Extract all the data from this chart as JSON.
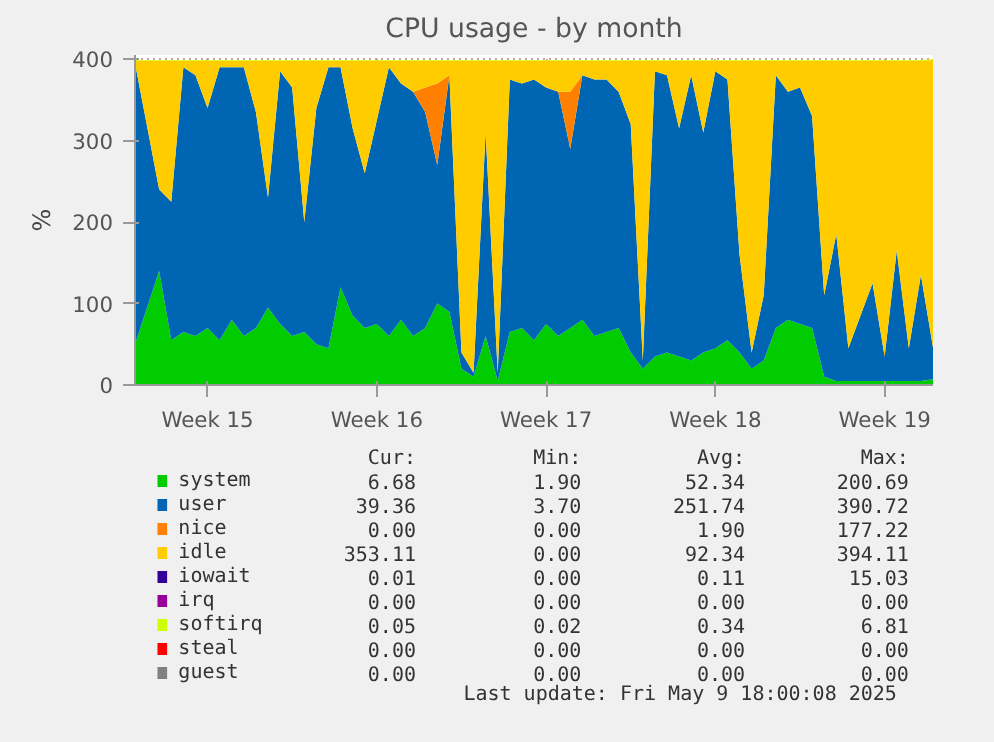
{
  "chart_data": {
    "type": "area",
    "stacked": true,
    "title": "CPU usage - by month",
    "ylabel": "%",
    "categories": [
      null,
      null,
      null,
      null,
      null,
      null,
      "Week 15",
      null,
      null,
      null,
      null,
      null,
      null,
      null,
      null,
      null,
      null,
      null,
      null,
      null,
      "Week 16",
      null,
      null,
      null,
      null,
      null,
      null,
      null,
      null,
      null,
      null,
      null,
      null,
      null,
      "Week 17",
      null,
      null,
      null,
      null,
      null,
      null,
      null,
      null,
      null,
      null,
      null,
      null,
      null,
      "Week 18",
      null,
      null,
      null,
      null,
      null,
      null,
      null,
      null,
      null,
      null,
      null,
      null,
      null,
      "Week 19",
      null,
      null,
      null,
      null
    ],
    "series": [
      {
        "name": "system",
        "color": "#00cc00",
        "values": [
          50,
          null,
          140,
          55,
          65,
          60,
          70,
          55,
          80,
          60,
          70,
          95,
          75,
          60,
          65,
          50,
          45,
          120,
          85,
          70,
          75,
          60,
          80,
          60,
          70,
          100,
          90,
          20,
          10,
          60,
          5,
          65,
          70,
          55,
          75,
          60,
          70,
          80,
          60,
          65,
          70,
          40,
          20,
          35,
          40,
          35,
          30,
          40,
          45,
          55,
          40,
          20,
          30,
          70,
          80,
          75,
          70,
          10,
          5,
          5,
          null,
          5,
          5,
          5,
          5,
          5,
          7
        ]
      },
      {
        "name": "user",
        "color": "#0066b3",
        "values": [
          345,
          null,
          100,
          170,
          325,
          320,
          270,
          335,
          310,
          330,
          265,
          135,
          310,
          305,
          135,
          290,
          345,
          270,
          230,
          190,
          250,
          330,
          290,
          300,
          265,
          170,
          290,
          20,
          5,
          250,
          10,
          310,
          300,
          320,
          290,
          300,
          220,
          300,
          315,
          310,
          290,
          280,
          10,
          350,
          340,
          280,
          350,
          270,
          340,
          320,
          120,
          20,
          80,
          310,
          280,
          290,
          260,
          100,
          180,
          40,
          null,
          120,
          30,
          160,
          40,
          130,
          39
        ]
      },
      {
        "name": "nice",
        "color": "#ff8000",
        "values": [
          0,
          null,
          0,
          0,
          0,
          0,
          0,
          0,
          0,
          0,
          0,
          0,
          0,
          0,
          0,
          0,
          0,
          0,
          0,
          0,
          0,
          0,
          0,
          0,
          30,
          100,
          0,
          0,
          0,
          0,
          0,
          0,
          0,
          0,
          0,
          0,
          70,
          0,
          0,
          0,
          0,
          0,
          0,
          0,
          0,
          0,
          0,
          0,
          0,
          0,
          0,
          0,
          0,
          0,
          0,
          0,
          0,
          0,
          0,
          0,
          null,
          0,
          0,
          0,
          0,
          0,
          0
        ]
      },
      {
        "name": "idle",
        "color": "#ffcc00",
        "values": [
          3,
          null,
          158,
          173,
          8,
          18,
          58,
          8,
          8,
          8,
          63,
          168,
          13,
          33,
          198,
          58,
          8,
          8,
          83,
          138,
          73,
          8,
          28,
          38,
          33,
          28,
          18,
          358,
          383,
          88,
          383,
          23,
          28,
          23,
          33,
          38,
          38,
          18,
          23,
          23,
          38,
          78,
          368,
          13,
          18,
          83,
          18,
          88,
          13,
          23,
          238,
          358,
          288,
          18,
          38,
          33,
          68,
          288,
          213,
          353,
          null,
          273,
          363,
          233,
          353,
          263,
          353
        ]
      },
      {
        "name": "iowait",
        "color": "#330099",
        "values": [
          null,
          null,
          null,
          null,
          null,
          null,
          null,
          null,
          null,
          null,
          null,
          null,
          null,
          null,
          null,
          null,
          null,
          null,
          null,
          null,
          null,
          null,
          null,
          null,
          null,
          null,
          null,
          null,
          null,
          null,
          null,
          null,
          null,
          null,
          null,
          null,
          null,
          null,
          null,
          null,
          null,
          null,
          null,
          null,
          null,
          null,
          null,
          null,
          null,
          null,
          null,
          null,
          null,
          null,
          null,
          null,
          null,
          null,
          null,
          null,
          null,
          null,
          null,
          null,
          null,
          null,
          null
        ]
      },
      {
        "name": "irq",
        "color": "#990099",
        "values": [
          null,
          null,
          null,
          null,
          null,
          null,
          null,
          null,
          null,
          null,
          null,
          null,
          null,
          null,
          null,
          null,
          null,
          null,
          null,
          null,
          null,
          null,
          null,
          null,
          null,
          null,
          null,
          null,
          null,
          null,
          null,
          null,
          null,
          null,
          null,
          null,
          null,
          null,
          null,
          null,
          null,
          null,
          null,
          null,
          null,
          null,
          null,
          null,
          null,
          null,
          null,
          null,
          null,
          null,
          null,
          null,
          null,
          null,
          null,
          null,
          null,
          null,
          null,
          null,
          null,
          null,
          null
        ]
      },
      {
        "name": "softirq",
        "color": "#ccff00",
        "values": [
          1,
          null,
          1,
          1,
          1,
          1,
          1,
          1,
          1,
          1,
          1,
          1,
          1,
          1,
          1,
          1,
          1,
          1,
          1,
          1,
          1,
          1,
          1,
          1,
          1,
          1,
          1,
          1,
          1,
          1,
          1,
          1,
          1,
          1,
          1,
          1,
          1,
          1,
          1,
          1,
          1,
          1,
          1,
          1,
          1,
          1,
          1,
          1,
          1,
          1,
          1,
          1,
          1,
          1,
          1,
          1,
          1,
          1,
          1,
          1,
          null,
          1,
          1,
          1,
          1,
          1,
          1
        ]
      },
      {
        "name": "steal",
        "color": "#ff0000",
        "values": [
          null,
          null,
          null,
          null,
          null,
          null,
          null,
          null,
          null,
          null,
          null,
          null,
          null,
          null,
          null,
          null,
          null,
          null,
          null,
          null,
          null,
          null,
          null,
          null,
          null,
          null,
          null,
          null,
          null,
          null,
          null,
          null,
          null,
          null,
          null,
          null,
          null,
          null,
          null,
          null,
          null,
          null,
          null,
          null,
          null,
          null,
          null,
          null,
          null,
          null,
          null,
          null,
          null,
          null,
          null,
          null,
          null,
          null,
          null,
          null,
          null,
          null,
          null,
          null,
          null,
          null,
          null
        ]
      },
      {
        "name": "guest",
        "color": "#808080",
        "values": [
          null,
          null,
          null,
          null,
          null,
          null,
          null,
          null,
          null,
          null,
          null,
          null,
          null,
          null,
          null,
          null,
          null,
          null,
          null,
          null,
          null,
          null,
          null,
          null,
          null,
          null,
          null,
          null,
          null,
          null,
          null,
          null,
          null,
          null,
          null,
          null,
          null,
          null,
          null,
          null,
          null,
          null,
          null,
          null,
          null,
          null,
          null,
          null,
          null,
          null,
          null,
          null,
          null,
          null,
          null,
          null,
          null,
          null,
          null,
          null,
          null,
          null,
          null,
          null,
          null,
          null,
          null
        ]
      }
    ],
    "ylim": [
      0,
      405
    ],
    "yticks": [
      0,
      100,
      200,
      300,
      400
    ],
    "grid": true,
    "legend": "bottom",
    "annotations": [
      "Cur:",
      "Min:",
      "Avg:",
      "Max:",
      "6.68",
      "1.90",
      "52.34",
      "200.69",
      "39.36",
      "3.70",
      "251.74",
      "390.72",
      "0.00",
      "0.00",
      "1.90",
      "177.22",
      "353.11",
      "0.00",
      "92.34",
      "394.11",
      "0.01",
      "0.00",
      "0.11",
      "15.03",
      "0.00",
      "0.00",
      "0.00",
      "0.00",
      "0.05",
      "0.02",
      "0.34",
      "6.81",
      "0.00",
      "0.00",
      "0.00",
      "0.00",
      "0.00",
      "0.00",
      "0.00",
      "0.00",
      "Last update: Fri May  9 18:00:08 2025"
    ]
  }
}
